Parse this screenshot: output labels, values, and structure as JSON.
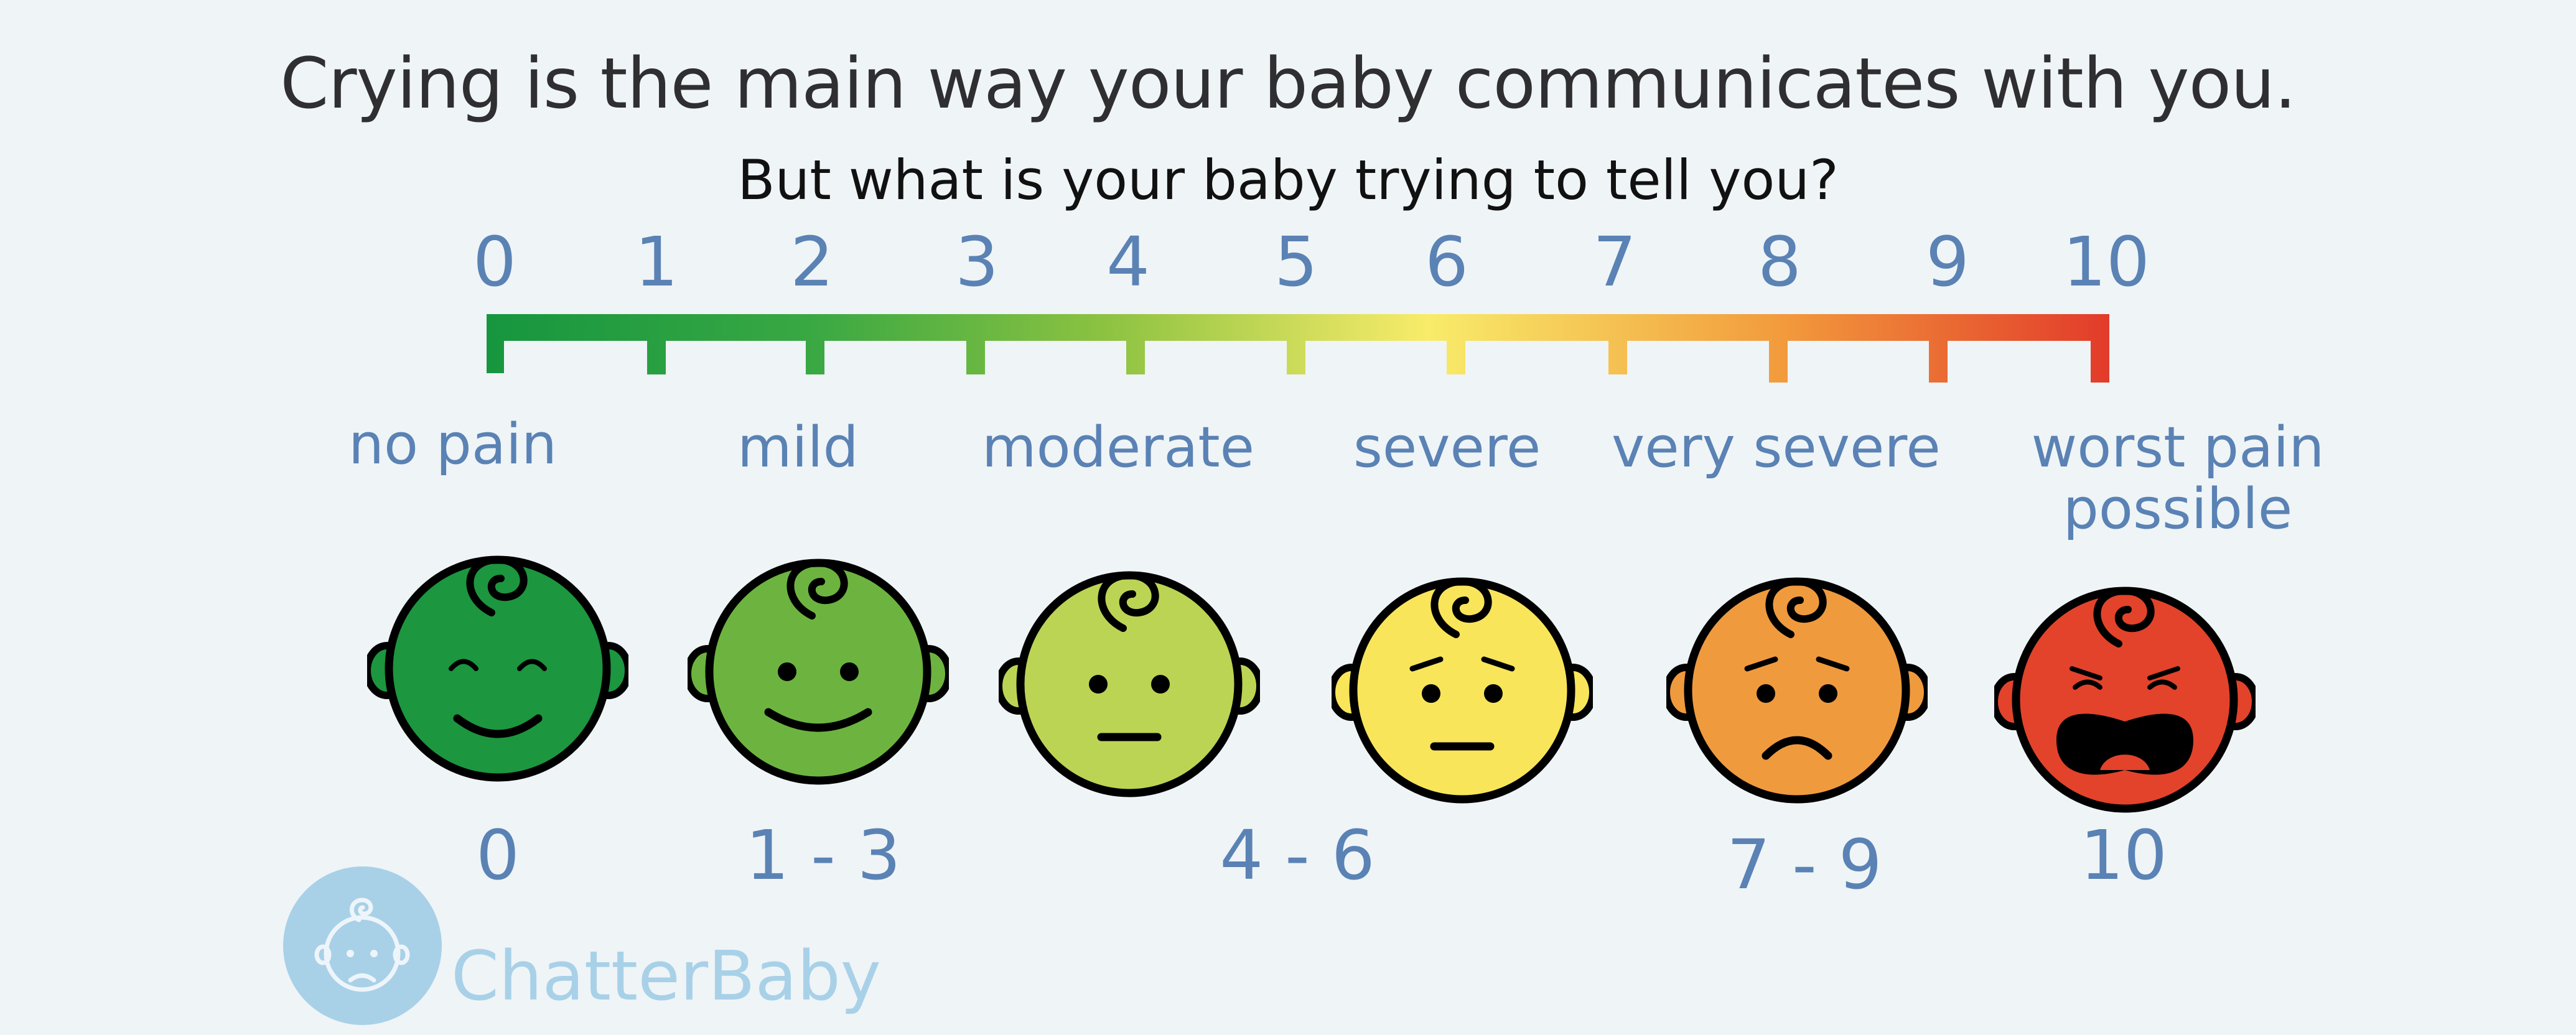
{
  "header": {
    "headline": "Crying is the main way your baby communicates with you.",
    "subheadline": "But what is your baby trying to tell you?"
  },
  "scale": {
    "numbers": [
      "0",
      "1",
      "2",
      "3",
      "4",
      "5",
      "6",
      "7",
      "8",
      "9",
      "10"
    ],
    "gradient_colors": [
      "#16963f",
      "#39a843",
      "#8cc241",
      "#f8ec6a",
      "#f29a3c",
      "#e23b2a"
    ]
  },
  "pain_labels": {
    "no_pain": "no pain",
    "mild": "mild",
    "moderate": "moderate",
    "severe": "severe",
    "very_severe": "very severe",
    "worst_line1": "worst pain",
    "worst_line2": "possible"
  },
  "faces": [
    {
      "icon": "happy-closed-eyes-face-icon",
      "color": "#1c963f"
    },
    {
      "icon": "smiling-face-icon",
      "color": "#6cb43f"
    },
    {
      "icon": "neutral-face-icon",
      "color": "#bcd454"
    },
    {
      "icon": "worried-face-icon",
      "color": "#f9e55a"
    },
    {
      "icon": "sad-face-icon",
      "color": "#f09a3e"
    },
    {
      "icon": "crying-face-icon",
      "color": "#e3432b"
    }
  ],
  "ranges": {
    "r0": "0",
    "r1": "1 - 3",
    "r2": "4 - 6",
    "r3": "7 - 9",
    "r4": "10"
  },
  "brand": {
    "name": "ChatterBaby",
    "logo_color": "#a8d1e8"
  }
}
